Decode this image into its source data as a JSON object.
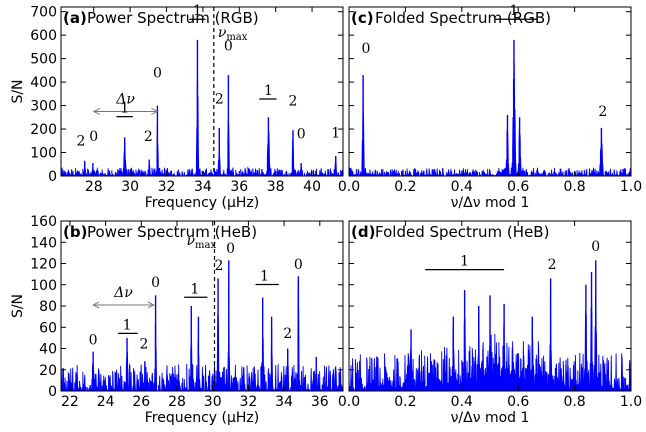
{
  "chart_data": [
    {
      "type": "line",
      "panel_label": "(a)",
      "title": "Power Spectrum (RGB)",
      "xlabel": "Frequency (μHz)",
      "ylabel": "S/N",
      "xlim": [
        26.2,
        41.7
      ],
      "ylim": [
        0,
        720
      ],
      "xticks": [
        28,
        30,
        32,
        34,
        36,
        38,
        40
      ],
      "yticks": [
        0,
        100,
        200,
        300,
        400,
        500,
        600,
        700
      ],
      "color": "#0000ff",
      "numax": 34.6,
      "numax_label": "νmax",
      "delta_nu": {
        "label": "Δν",
        "from": 28.0,
        "to": 31.5,
        "y": 275
      },
      "peaks": [
        {
          "x": 27.5,
          "y": 65,
          "w": 0.06
        },
        {
          "x": 27.95,
          "y": 55,
          "w": 0.05
        },
        {
          "x": 29.7,
          "y": 165,
          "w": 0.08
        },
        {
          "x": 31.05,
          "y": 70,
          "w": 0.06
        },
        {
          "x": 31.5,
          "y": 300,
          "w": 0.05
        },
        {
          "x": 33.7,
          "y": 580,
          "w": 0.06
        },
        {
          "x": 34.9,
          "y": 205,
          "w": 0.06
        },
        {
          "x": 35.4,
          "y": 430,
          "w": 0.05
        },
        {
          "x": 37.6,
          "y": 250,
          "w": 0.08
        },
        {
          "x": 38.95,
          "y": 195,
          "w": 0.06
        },
        {
          "x": 39.4,
          "y": 55,
          "w": 0.05
        },
        {
          "x": 41.3,
          "y": 85,
          "w": 0.06
        }
      ],
      "labels": [
        {
          "text": "2",
          "x": 27.3,
          "y": 130
        },
        {
          "text": "0",
          "x": 28.0,
          "y": 150
        },
        {
          "text": "1",
          "x": 29.7,
          "y": 270,
          "bar": [
            29.25,
            30.15
          ]
        },
        {
          "text": "2",
          "x": 31.0,
          "y": 150
        },
        {
          "text": "0",
          "x": 31.5,
          "y": 420
        },
        {
          "text": "1",
          "x": 33.7,
          "y": 685,
          "bar": [
            33.25,
            34.15
          ]
        },
        {
          "text": "2",
          "x": 34.9,
          "y": 308
        },
        {
          "text": "0",
          "x": 35.4,
          "y": 535
        },
        {
          "text": "1",
          "x": 37.6,
          "y": 345,
          "bar": [
            37.1,
            38.05
          ]
        },
        {
          "text": "2",
          "x": 38.95,
          "y": 300
        },
        {
          "text": "0",
          "x": 39.4,
          "y": 160
        },
        {
          "text": "1",
          "x": 41.3,
          "y": 165
        }
      ]
    },
    {
      "type": "line",
      "panel_label": "(c)",
      "title": "Folded Spectrum (RGB)",
      "xlabel": "ν/Δν mod 1",
      "ylabel": "",
      "xlim": [
        0.0,
        1.0
      ],
      "ylim": [
        0,
        720
      ],
      "xticks": [
        0.0,
        0.2,
        0.4,
        0.6,
        0.8,
        1.0
      ],
      "color": "#0000ff",
      "peaks": [
        {
          "x": 0.05,
          "y": 430,
          "w": 0.004
        },
        {
          "x": 0.585,
          "y": 580,
          "w": 0.006
        },
        {
          "x": 0.562,
          "y": 260,
          "w": 0.005
        },
        {
          "x": 0.605,
          "y": 250,
          "w": 0.005
        },
        {
          "x": 0.895,
          "y": 205,
          "w": 0.006
        }
      ],
      "labels": [
        {
          "text": "0",
          "x": 0.06,
          "y": 525
        },
        {
          "text": "1",
          "x": 0.585,
          "y": 685,
          "bar": [
            0.52,
            0.665
          ]
        },
        {
          "text": "2",
          "x": 0.9,
          "y": 255
        }
      ]
    },
    {
      "type": "line",
      "panel_label": "(b)",
      "title": "Power Spectrum (HeB)",
      "xlabel": "Frequency (μHz)",
      "ylabel": "S/N",
      "xlim": [
        21.5,
        37.3
      ],
      "ylim": [
        0,
        160
      ],
      "xticks": [
        22,
        24,
        26,
        28,
        30,
        32,
        34,
        36
      ],
      "yticks": [
        0,
        20,
        40,
        60,
        80,
        100,
        120,
        140,
        160
      ],
      "color": "#0000ff",
      "numax": 30.1,
      "numax_label": "νmax",
      "delta_nu": {
        "label": "Δν",
        "from": 23.3,
        "to": 26.7,
        "y": 81
      },
      "peaks": [
        {
          "x": 23.3,
          "y": 37,
          "w": 0.05
        },
        {
          "x": 25.2,
          "y": 50,
          "w": 0.08
        },
        {
          "x": 26.2,
          "y": 28,
          "w": 0.05
        },
        {
          "x": 26.8,
          "y": 90,
          "w": 0.05
        },
        {
          "x": 28.8,
          "y": 80,
          "w": 0.06
        },
        {
          "x": 29.2,
          "y": 70,
          "w": 0.05
        },
        {
          "x": 30.3,
          "y": 106,
          "w": 0.05
        },
        {
          "x": 30.9,
          "y": 123,
          "w": 0.05
        },
        {
          "x": 32.8,
          "y": 88,
          "w": 0.06
        },
        {
          "x": 33.3,
          "y": 70,
          "w": 0.05
        },
        {
          "x": 34.2,
          "y": 40,
          "w": 0.06
        },
        {
          "x": 34.8,
          "y": 108,
          "w": 0.05
        },
        {
          "x": 35.8,
          "y": 32,
          "w": 0.06
        }
      ],
      "labels": [
        {
          "text": "0",
          "x": 23.3,
          "y": 44
        },
        {
          "text": "1",
          "x": 25.2,
          "y": 58,
          "bar": [
            24.7,
            25.8
          ]
        },
        {
          "text": "2",
          "x": 26.15,
          "y": 40
        },
        {
          "text": "0",
          "x": 26.8,
          "y": 98
        },
        {
          "text": "1",
          "x": 29.0,
          "y": 92,
          "bar": [
            28.4,
            29.7
          ]
        },
        {
          "text": "2",
          "x": 30.35,
          "y": 114
        },
        {
          "text": "0",
          "x": 31.0,
          "y": 130
        },
        {
          "text": "1",
          "x": 32.9,
          "y": 104,
          "bar": [
            32.4,
            33.7
          ]
        },
        {
          "text": "2",
          "x": 34.2,
          "y": 50
        },
        {
          "text": "0",
          "x": 34.8,
          "y": 115
        }
      ]
    },
    {
      "type": "line",
      "panel_label": "(d)",
      "title": "Folded Spectrum (HeB)",
      "xlabel": "ν/Δν mod 1",
      "ylabel": "",
      "xlim": [
        0.0,
        1.0
      ],
      "ylim": [
        0,
        160
      ],
      "xticks": [
        0.0,
        0.2,
        0.4,
        0.6,
        0.8,
        1.0
      ],
      "color": "#0000ff",
      "peaks": [
        {
          "x": 0.41,
          "y": 95,
          "w": 0.004
        },
        {
          "x": 0.5,
          "y": 90,
          "w": 0.004
        },
        {
          "x": 0.46,
          "y": 80,
          "w": 0.004
        },
        {
          "x": 0.37,
          "y": 70,
          "w": 0.004
        },
        {
          "x": 0.55,
          "y": 82,
          "w": 0.004
        },
        {
          "x": 0.715,
          "y": 106,
          "w": 0.004
        },
        {
          "x": 0.84,
          "y": 100,
          "w": 0.004
        },
        {
          "x": 0.875,
          "y": 123,
          "w": 0.004
        },
        {
          "x": 0.86,
          "y": 112,
          "w": 0.004
        },
        {
          "x": 0.22,
          "y": 58,
          "w": 0.004
        },
        {
          "x": 0.65,
          "y": 70,
          "w": 0.004
        }
      ],
      "labels": [
        {
          "text": "1",
          "x": 0.41,
          "y": 118,
          "bar": [
            0.27,
            0.55
          ]
        },
        {
          "text": "2",
          "x": 0.72,
          "y": 115
        },
        {
          "text": "0",
          "x": 0.875,
          "y": 132
        }
      ]
    }
  ]
}
